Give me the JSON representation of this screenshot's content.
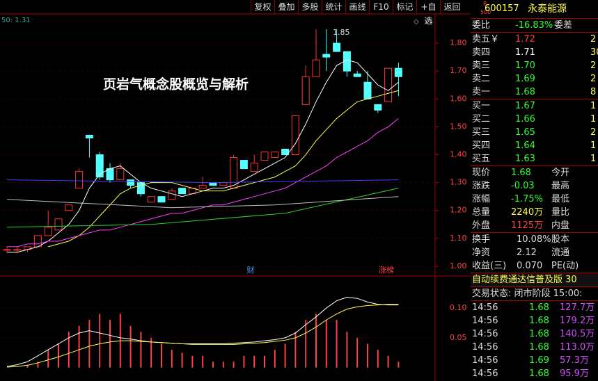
{
  "toolbar": {
    "buttons": [
      "复权",
      "叠加",
      "多股",
      "统计",
      "画线",
      "F10",
      "标记",
      "+自选",
      "返回"
    ]
  },
  "chart_data": {
    "type": "candlestick",
    "overlay_title": "页岩气概念股概览与解析",
    "corner_label": "50: 1.31",
    "peak_label": "1.85",
    "markers": [
      {
        "label": "财",
        "color": "#3fa0ff"
      },
      {
        "label": "涨榜",
        "color": "#ff4040"
      }
    ],
    "ylim": [
      0.97,
      1.885
    ],
    "yticks": [
      {
        "value": 1.0,
        "label": "1.00"
      },
      {
        "value": 1.1,
        "label": "1.10"
      },
      {
        "value": 1.2,
        "label": "1.20"
      },
      {
        "value": 1.3,
        "label": "1.30"
      },
      {
        "value": 1.4,
        "label": "1.40"
      },
      {
        "value": 1.5,
        "label": "1.50"
      },
      {
        "value": 1.6,
        "label": "1.60"
      },
      {
        "value": 1.7,
        "label": "1.70"
      },
      {
        "value": 1.8,
        "label": "1.80"
      }
    ],
    "open": [
      1.06,
      1.06,
      1.06,
      1.07,
      1.11,
      1.13,
      1.2,
      1.28,
      1.47,
      1.4,
      1.35,
      1.31,
      1.31,
      1.3,
      1.23,
      1.25,
      1.24,
      1.28,
      1.26,
      1.28,
      1.3,
      1.29,
      1.28,
      1.38,
      1.34,
      1.38,
      1.39,
      1.42,
      1.4,
      1.58,
      1.68,
      1.76,
      1.8,
      1.77,
      1.69,
      1.66,
      1.58,
      1.59,
      1.71
    ],
    "high": [
      1.07,
      1.07,
      1.07,
      1.11,
      1.2,
      1.17,
      1.22,
      1.35,
      1.47,
      1.41,
      1.37,
      1.37,
      1.31,
      1.3,
      1.25,
      1.25,
      1.28,
      1.28,
      1.28,
      1.32,
      1.3,
      1.3,
      1.4,
      1.38,
      1.4,
      1.41,
      1.41,
      1.42,
      1.54,
      1.72,
      1.85,
      1.85,
      1.85,
      1.77,
      1.7,
      1.7,
      1.58,
      1.71,
      1.73
    ],
    "low": [
      1.05,
      1.05,
      1.05,
      1.07,
      1.11,
      1.13,
      1.2,
      1.28,
      1.39,
      1.31,
      1.3,
      1.31,
      1.28,
      1.25,
      1.23,
      1.23,
      1.24,
      1.26,
      1.26,
      1.28,
      1.29,
      1.29,
      1.28,
      1.35,
      1.34,
      1.38,
      1.39,
      1.4,
      1.4,
      1.58,
      1.68,
      1.7,
      1.77,
      1.68,
      1.68,
      1.6,
      1.55,
      1.59,
      1.61
    ],
    "close": [
      1.06,
      1.06,
      1.07,
      1.11,
      1.14,
      1.17,
      1.22,
      1.34,
      1.46,
      1.32,
      1.31,
      1.35,
      1.29,
      1.26,
      1.25,
      1.23,
      1.27,
      1.26,
      1.28,
      1.29,
      1.29,
      1.3,
      1.39,
      1.35,
      1.37,
      1.41,
      1.41,
      1.4,
      1.54,
      1.68,
      1.74,
      1.75,
      1.77,
      1.7,
      1.68,
      1.6,
      1.56,
      1.71,
      1.68
    ],
    "up_color": "#ff3232",
    "down_color": "#54ffff",
    "series": [
      {
        "color": "#ffffff",
        "values": [
          1.05,
          1.05,
          1.06,
          1.07,
          1.09,
          1.12,
          1.15,
          1.2,
          1.28,
          1.33,
          1.35,
          1.36,
          1.33,
          1.3,
          1.28,
          1.27,
          1.26,
          1.25,
          1.26,
          1.27,
          1.28,
          1.28,
          1.29,
          1.31,
          1.33,
          1.35,
          1.37,
          1.39,
          1.44,
          1.51,
          1.59,
          1.66,
          1.72,
          1.74,
          1.73,
          1.69,
          1.65,
          1.63,
          1.66
        ]
      },
      {
        "color": "#ffff50",
        "values": [
          null,
          null,
          null,
          null,
          1.07,
          1.08,
          1.09,
          1.11,
          1.14,
          1.18,
          1.22,
          1.26,
          1.28,
          1.29,
          1.3,
          1.3,
          1.3,
          1.29,
          1.28,
          1.27,
          1.27,
          1.27,
          1.28,
          1.29,
          1.3,
          1.31,
          1.32,
          1.34,
          1.36,
          1.4,
          1.45,
          1.49,
          1.53,
          1.56,
          1.59,
          1.6,
          1.61,
          1.62,
          1.63
        ]
      },
      {
        "color": "#ff40ff",
        "values": [
          1.07,
          1.07,
          1.08,
          1.08,
          1.09,
          1.09,
          1.1,
          1.11,
          1.12,
          1.13,
          1.13,
          1.14,
          1.15,
          1.16,
          1.17,
          1.18,
          1.19,
          1.19,
          1.2,
          1.21,
          1.22,
          1.22,
          1.23,
          1.24,
          1.25,
          1.26,
          1.27,
          1.28,
          1.3,
          1.32,
          1.34,
          1.36,
          1.39,
          1.41,
          1.43,
          1.45,
          1.48,
          1.5,
          1.53
        ]
      },
      {
        "color": "#30d030",
        "x": [
          0,
          14,
          27,
          38
        ],
        "values": [
          1.14,
          1.15,
          1.19,
          1.28
        ]
      },
      {
        "color": "#c0c0c0",
        "x": [
          0,
          16,
          26,
          38
        ],
        "values": [
          1.24,
          1.21,
          1.22,
          1.25
        ]
      },
      {
        "color": "#4040ff",
        "x": [
          0,
          20,
          38
        ],
        "values": [
          1.31,
          1.3,
          1.31
        ]
      }
    ],
    "lower": {
      "ylim": [
        -0.02,
        0.15
      ],
      "yticks": [
        {
          "value": 0.05,
          "label": "0.05"
        },
        {
          "value": 0.1,
          "label": "0.10"
        }
      ],
      "bar_color": "#ff4040",
      "bars": [
        0,
        0,
        0.005,
        0.01,
        0.03,
        0.04,
        0.06,
        0.07,
        0.08,
        0.09,
        0.08,
        0.09,
        0.07,
        0.06,
        0.05,
        0.04,
        0.03,
        0.025,
        0.02,
        0.02,
        0.01,
        0.01,
        0.01,
        0.02,
        0.02,
        0.02,
        0.03,
        0.04,
        0.06,
        0.08,
        0.09,
        0.08,
        0.08,
        0.06,
        0.05,
        0.04,
        0.03,
        0.02,
        0.01
      ],
      "lines": [
        {
          "color": "#ffffff",
          "values": [
            0.002,
            0.005,
            0.01,
            0.02,
            0.03,
            0.04,
            0.05,
            0.058,
            0.062,
            0.058,
            0.054,
            0.05,
            0.048,
            0.045,
            0.043,
            0.042,
            0.041,
            0.04,
            0.04,
            0.04,
            0.04,
            0.04,
            0.041,
            0.042,
            0.043,
            0.045,
            0.047,
            0.05,
            0.058,
            0.072,
            0.085,
            0.1,
            0.112,
            0.118,
            0.116,
            0.11,
            0.106,
            0.105,
            0.105
          ]
        },
        {
          "color": "#ffff50",
          "values": [
            0.001,
            0.002,
            0.004,
            0.008,
            0.013,
            0.018,
            0.024,
            0.03,
            0.036,
            0.04,
            0.043,
            0.045,
            0.045,
            0.044,
            0.043,
            0.042,
            0.041,
            0.04,
            0.039,
            0.039,
            0.039,
            0.039,
            0.039,
            0.04,
            0.041,
            0.042,
            0.044,
            0.046,
            0.05,
            0.058,
            0.068,
            0.08,
            0.09,
            0.098,
            0.102,
            0.104,
            0.105,
            0.106,
            0.106
          ]
        }
      ]
    }
  },
  "panel": {
    "badge_top": "R",
    "badge_bottom": "500",
    "code": "600157",
    "name": "永泰能源",
    "weibi": {
      "label": "委比",
      "value": "-16.83%",
      "label2": "委差"
    },
    "asks": [
      {
        "label": "卖五￥",
        "price": "1.72",
        "vol": "2",
        "color": "#ff4040"
      },
      {
        "label": "卖四",
        "price": "1.71",
        "vol": "30",
        "color": "#ffffff"
      },
      {
        "label": "卖三",
        "price": "1.70",
        "vol": "2",
        "color": "#30ff30"
      },
      {
        "label": "卖二",
        "price": "1.69",
        "vol": "2",
        "color": "#30ff30"
      },
      {
        "label": "卖一",
        "price": "1.68",
        "vol": "8",
        "color": "#30ff30"
      }
    ],
    "bids": [
      {
        "label": "买一",
        "price": "1.67",
        "vol": "1",
        "color": "#30ff30"
      },
      {
        "label": "买二",
        "price": "1.66",
        "vol": "1",
        "color": "#30ff30"
      },
      {
        "label": "买三",
        "price": "1.65",
        "vol": "2",
        "color": "#30ff30"
      },
      {
        "label": "买四",
        "price": "1.64",
        "vol": "1",
        "color": "#30ff30"
      },
      {
        "label": "买五",
        "price": "1.63",
        "vol": "1",
        "color": "#30ff30"
      }
    ],
    "stats1": [
      {
        "label": "现价",
        "value": "1.68",
        "label2": "今开",
        "color": "#30ff30"
      },
      {
        "label": "涨跌",
        "value": "-0.03",
        "label2": "最高",
        "color": "#30ff30"
      },
      {
        "label": "涨幅",
        "value": "-1.75%",
        "label2": "最低",
        "color": "#30ff30"
      },
      {
        "label": "总量",
        "value": "2240万",
        "label2": "量比",
        "color": "#ffff50"
      },
      {
        "label": "外盘",
        "value": "1125万",
        "label2": "内盘",
        "color": "#ff4040"
      }
    ],
    "stats2": [
      {
        "label": "换手",
        "value": "10.08%",
        "label2": "股本"
      },
      {
        "label": "净资",
        "value": "2.12",
        "label2": "流通"
      },
      {
        "label": "收益(三)",
        "value": "0.070",
        "label2": "PE(动)"
      }
    ],
    "ticker": "自动续费通达信普及版 30",
    "status": "交易状态: 闭市阶段 15:00:",
    "trades": [
      {
        "time": "14:56",
        "price": "1.68",
        "vol": "127.7万"
      },
      {
        "time": "14:56",
        "price": "1.68",
        "vol": "179.2万"
      },
      {
        "time": "14:56",
        "price": "1.68",
        "vol": "140.5万"
      },
      {
        "time": "14:56",
        "price": "1.68",
        "vol": "113.0万"
      },
      {
        "time": "14:56",
        "price": "1.69",
        "vol": "57.3万"
      },
      {
        "time": "14:56",
        "price": "1.68",
        "vol": "95.9万"
      }
    ]
  }
}
